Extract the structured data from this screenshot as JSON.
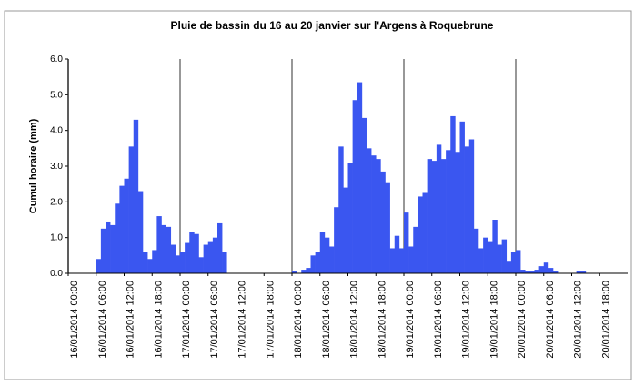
{
  "chart_data": {
    "type": "bar",
    "title": "Pluie de bassin du 16 au 20 janvier sur l'Argens à Roquebrune",
    "y_label": "Cumul horaire (mm)",
    "color": "#3a56f0",
    "categories": [
      "16/01/2014 00:00",
      null,
      null,
      null,
      null,
      null,
      "16/01/2014 06:00",
      null,
      null,
      null,
      null,
      null,
      "16/01/2014 12:00",
      null,
      null,
      null,
      null,
      null,
      "16/01/2014 18:00",
      null,
      null,
      null,
      null,
      null,
      "17/01/2014 00:00",
      null,
      null,
      null,
      null,
      null,
      "17/01/2014 06:00",
      null,
      null,
      null,
      null,
      null,
      "17/01/2014 12:00",
      null,
      null,
      null,
      null,
      null,
      "17/01/2014 18:00",
      null,
      null,
      null,
      null,
      null,
      "18/01/2014 00:00",
      null,
      null,
      null,
      null,
      null,
      "18/01/2014 06:00",
      null,
      null,
      null,
      null,
      null,
      "18/01/2014 12:00",
      null,
      null,
      null,
      null,
      null,
      "18/01/2014 18:00",
      null,
      null,
      null,
      null,
      null,
      "19/01/2014 00:00",
      null,
      null,
      null,
      null,
      null,
      "19/01/2014 06:00",
      null,
      null,
      null,
      null,
      null,
      "19/01/2014 12:00",
      null,
      null,
      null,
      null,
      null,
      "19/01/2014 18:00",
      null,
      null,
      null,
      null,
      null,
      "20/01/2014 00:00",
      null,
      null,
      null,
      null,
      null,
      "20/01/2014 06:00",
      null,
      null,
      null,
      null,
      null,
      "20/01/2014 12:00",
      null,
      null,
      null,
      null,
      null,
      "20/01/2014 18:00",
      null,
      null,
      null,
      null,
      null
    ],
    "values": [
      0,
      0,
      0,
      0,
      0,
      0,
      0.4,
      1.25,
      1.45,
      1.35,
      1.95,
      2.45,
      2.65,
      3.55,
      4.3,
      2.3,
      0.6,
      0.4,
      0.65,
      1.6,
      1.35,
      1.3,
      0.8,
      0.5,
      0.6,
      0.85,
      1.15,
      1.1,
      0.45,
      0.8,
      0.9,
      1.0,
      1.4,
      0.6,
      0,
      0,
      0,
      0,
      0,
      0,
      0,
      0,
      0,
      0,
      0,
      0,
      0,
      0,
      0.05,
      0,
      0.1,
      0.15,
      0.5,
      0.6,
      1.15,
      1.0,
      0.75,
      1.85,
      3.55,
      2.4,
      3.1,
      4.85,
      5.35,
      4.35,
      3.5,
      3.3,
      3.2,
      2.85,
      2.55,
      0.7,
      1.05,
      0.7,
      1.7,
      0.75,
      1.3,
      2.15,
      2.25,
      3.2,
      3.15,
      3.6,
      3.2,
      3.45,
      4.4,
      3.4,
      4.25,
      3.55,
      3.75,
      1.25,
      0.7,
      1.0,
      0.9,
      1.5,
      0.8,
      0.95,
      0.35,
      0.6,
      0.65,
      0.1,
      0.05,
      0.05,
      0.1,
      0.2,
      0.3,
      0.15,
      0.05,
      0,
      0,
      0,
      0,
      0.05,
      0.05,
      0,
      0,
      0,
      0,
      0,
      0,
      0,
      0,
      0
    ],
    "ylim": [
      0,
      6
    ],
    "yticks": [
      {
        "value": 0,
        "label": "0.0"
      },
      {
        "value": 1,
        "label": "1.0"
      },
      {
        "value": 2,
        "label": "2.0"
      },
      {
        "value": 3,
        "label": "3.0"
      },
      {
        "value": 4,
        "label": "4.0"
      },
      {
        "value": 5,
        "label": "5.0"
      },
      {
        "value": 6,
        "label": "6.0"
      }
    ]
  }
}
